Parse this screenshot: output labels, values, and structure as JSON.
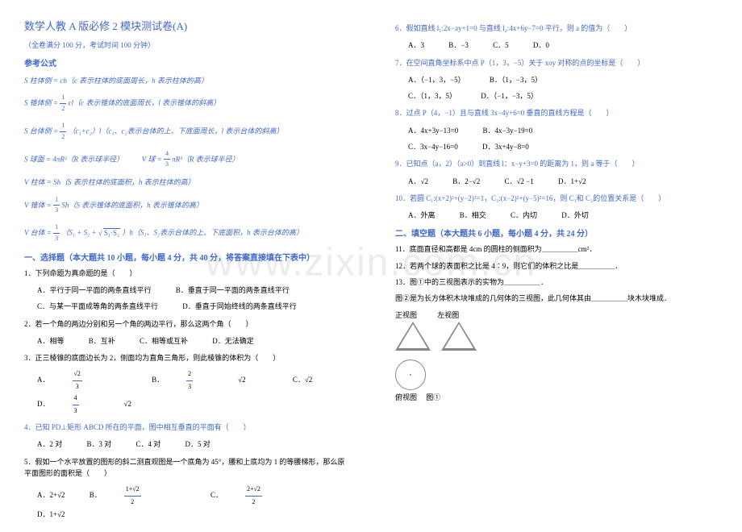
{
  "watermark": "www.zixin.com.cn",
  "left": {
    "title": "数学人教 A 版必修 2 模块测试卷(A)",
    "subtitle": "（全卷满分 100 分，考试时间 100 分钟）",
    "formula_header": "参考公式",
    "f1": "S 柱体侧 = ch（c 表示柱体的底面周长，h 表示柱体的高）",
    "f2_pre": "S 锥体侧 = ",
    "f2_frac_num": "1",
    "f2_frac_den": "2",
    "f2_post": " cl（c 表示锥体的底面周长，l 表示锥体的斜高）",
    "f3_pre": "S 台体侧 = ",
    "f3_frac_num": "1",
    "f3_frac_den": "2",
    "f3_post": "（c₁+c₂）l（c₁、c₂表示台体的上、下底面周长，l 表示台体的斜高）",
    "f4a": "S 球面 = 4πR²（R 表示球半径）",
    "f4b_pre": "V 球 = ",
    "f4b_frac_num": "4",
    "f4b_frac_den": "3",
    "f4b_post": " πR³（R 表示球半径）",
    "f5": "V 柱体 = Sh（S 表示柱体的底面积，h 表示柱体的高）",
    "f6_pre": "V 锥体 = ",
    "f6_frac_num": "1",
    "f6_frac_den": "3",
    "f6_post": " Sh（S 表示锥体的底面积，h 表示锥体的高）",
    "f7_pre": "V 台体 = ",
    "f7_frac_num": "1",
    "f7_frac_den": "3",
    "f7_mid": "（S₁ + S₂ + ",
    "f7_sqrt": "S₁·S₂",
    "f7_post": "）h（S₁、S₂表示台体的上、下底面积，h 表示台体的高）",
    "sec1": "一、选择题（本大题共 10 小题，每小题 4 分，共 40 分，将答案直接填在下表中）",
    "q1": "1．下列命题为真命题的是（　　）",
    "q1a": "A．平行于同一平面的两条直线平行",
    "q1b": "B．垂直于同一平面的两条直线平行",
    "q1c": "C．与某一平面成等角的两条直线平行",
    "q1d": "D．垂直于同始终线的两条直线平行",
    "q2": "2．若一个角的两边分别和另一个角的两边平行，那么这两个角（　　）",
    "q2a": "A．相等",
    "q2b": "B．互补",
    "q2c": "C．相等或互补",
    "q2d": "D．无法确定",
    "q3": "3．正三棱锥的底面边长为 2，侧面均为直角三角形，则此棱锥的体积为（　　）",
    "q3a_pre": "A．",
    "q3a_num": "√2",
    "q3a_den": "3",
    "q3b_pre": "B．",
    "q3b_num": "2",
    "q3b_den": "3",
    "q3b_sqrt": "√2",
    "q3c": "C．√2",
    "q3d_pre": "D．",
    "q3d_num": "4",
    "q3d_den": "3",
    "q3d_sqrt": "√2",
    "q4": "4．已知 PD⊥矩形 ABCD 所在的平面，图中相互垂直的平面有（　　）",
    "q4a": "A．2 对",
    "q4b": "B．3 对",
    "q4c": "C．4 对",
    "q4d": "D．5 对",
    "q5": "5．假如一个水平放置的图形的斜二测直观图是一个底角为 45°，腰和上底均为 1 的等腰梯形，那么原平面图形的面积是（　　）",
    "q5a": "A．2+√2",
    "q5b_pre": "B．",
    "q5b_num": "1+√2",
    "q5b_den": "2",
    "q5c_pre": "C．",
    "q5c_num": "2+√2",
    "q5c_den": "2",
    "q5d": "D．1+√2"
  },
  "right": {
    "q6": "6．假如直线 l₁:2x−ay+1=0 与直线 l₂:4x+6y−7=0 平行，则 a 的值为（　　）",
    "q6a": "A．3",
    "q6b": "B．−3",
    "q6c": "C．5",
    "q6d": "D．0",
    "q7": "7．在空间直角坐标系中点 P（1，3，−5）关于 xoy 对称的点的坐标是（　　）",
    "q7a": "A．（−1，3，−5）",
    "q7b": "B．（1，−3，5）",
    "q7c": "C．（1，3，5）",
    "q7d": "D．（−1，−3，5）",
    "q8": "8．过点 P（4，−1）且与直线 3x−4y+6=0 垂直的直线方程是（　　）",
    "q8a": "A．4x+3y−13=0",
    "q8b": "B．4x−3y−19=0",
    "q8c": "C．3x−4y−16=0",
    "q8d": "D．3x+4y−8=0",
    "q9": "9．已知点（a，2）（a>0）到直线 l：x−y+3=0 的距离为 1，则 a 等于（　　）",
    "q9a": "A．√2",
    "q9b": "B．2−√2",
    "q9c": "C．√2 −1",
    "q9d": "D．1+√2",
    "q10": "10．若圆 C₁:(x+2)²+(y−2)²=1，C₂:(x−2)²+(y−5)²=16，则 C₁和 C₂的位置关系是（　　）",
    "q10a": "A．外离",
    "q10b": "B．相交",
    "q10c": "C．内切",
    "q10d": "D．外切",
    "sec2": "二、填空题（本大题共 6 小题，每小题 4 分，共 24 分）",
    "q11": "11．底面直径和高都是 4cm 的圆柱的侧面积为＿＿＿＿＿cm²．",
    "q12": "12．若两个球的表面积之比是 4∶9，则它们的体积之比是＿＿＿＿＿．",
    "q13": "13．图①中的三视图表示的实物为＿＿＿＿＿．",
    "q14": "图②是为长方体积木块堆成的几何体的三视图，此几何体其由＿＿＿＿＿块木块堆成．",
    "shape_label1": "正视图",
    "shape_label2": "左视图",
    "shape_below": "俯视图",
    "shape_fig": "图①"
  }
}
